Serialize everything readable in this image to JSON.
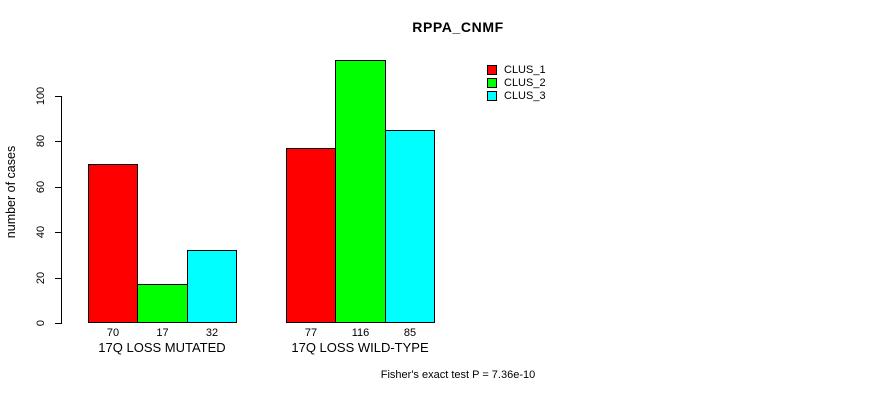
{
  "chart_data": {
    "type": "bar",
    "title": "RPPA_CNMF",
    "xlabel": "",
    "ylabel": "number of cases",
    "ylim": [
      0,
      100
    ],
    "yticks": [
      0,
      20,
      40,
      60,
      80,
      100
    ],
    "grid": false,
    "legend_position": "top-right",
    "categories": [
      "17Q LOSS MUTATED",
      "17Q LOSS WILD-TYPE"
    ],
    "series": [
      {
        "name": "CLUS_1",
        "color": "#ff0000",
        "values": [
          70,
          77
        ]
      },
      {
        "name": "CLUS_2",
        "color": "#00ff00",
        "values": [
          17,
          116
        ]
      },
      {
        "name": "CLUS_3",
        "color": "#00ffff",
        "values": [
          32,
          85
        ]
      }
    ],
    "bar_value_labels": [
      [
        70,
        17,
        32
      ],
      [
        77,
        116,
        85
      ]
    ],
    "annotation": "Fisher's exact test P = 7.36e-10"
  },
  "colors": {
    "background": "#ffffff",
    "axis": "#000000",
    "text": "#000000",
    "bar_border": "#000000"
  }
}
